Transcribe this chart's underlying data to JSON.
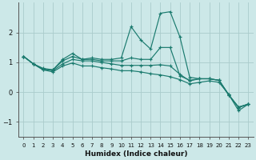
{
  "xlabel": "Humidex (Indice chaleur)",
  "background_color": "#cce8e8",
  "grid_color": "#aacccc",
  "line_color": "#1a7a6e",
  "xlim": [
    -0.5,
    23.5
  ],
  "ylim": [
    -1.5,
    3.0
  ],
  "xticks": [
    0,
    1,
    2,
    3,
    4,
    5,
    6,
    7,
    8,
    9,
    10,
    11,
    12,
    13,
    14,
    15,
    16,
    17,
    18,
    19,
    20,
    21,
    22,
    23
  ],
  "yticks": [
    -1,
    0,
    1,
    2
  ],
  "series": [
    [
      1.2,
      0.95,
      0.75,
      0.75,
      1.1,
      1.3,
      1.1,
      1.15,
      1.1,
      1.1,
      1.15,
      2.2,
      1.75,
      1.45,
      2.65,
      2.7,
      1.85,
      0.5,
      0.45,
      0.45,
      0.4,
      -0.1,
      -0.5,
      -0.4
    ],
    [
      1.2,
      0.95,
      0.8,
      0.75,
      1.05,
      1.2,
      1.1,
      1.1,
      1.05,
      1.05,
      1.05,
      1.15,
      1.1,
      1.1,
      1.5,
      1.5,
      0.55,
      0.4,
      0.45,
      0.45,
      0.4,
      -0.1,
      -0.5,
      -0.4
    ],
    [
      1.2,
      0.95,
      0.78,
      0.72,
      0.95,
      1.1,
      1.05,
      1.05,
      1.0,
      0.95,
      0.9,
      0.9,
      0.9,
      0.9,
      0.92,
      0.88,
      0.6,
      0.38,
      0.45,
      0.45,
      0.4,
      -0.08,
      -0.52,
      -0.4
    ],
    [
      1.2,
      0.95,
      0.75,
      0.68,
      0.88,
      0.98,
      0.88,
      0.88,
      0.82,
      0.78,
      0.72,
      0.72,
      0.68,
      0.62,
      0.58,
      0.52,
      0.42,
      0.28,
      0.33,
      0.38,
      0.33,
      -0.08,
      -0.62,
      -0.4
    ]
  ]
}
